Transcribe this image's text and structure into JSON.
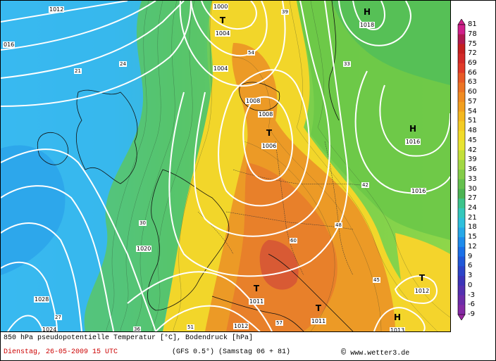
{
  "map": {
    "title_line": "850 hPa pseudopotentielle Temperatur [°C],  Bodendruck [hPa]",
    "date_line": "Dienstag, 26-05-2009  15 UTC",
    "model_line": "(GFS 0.5°)  (Samstag 06 + 81)",
    "copyright_symbol": "©",
    "copyright_site": "www.wetter3.de",
    "colors": {
      "c_cyan_light": "#3ad8f0",
      "c_blue": "#1e90ff",
      "c_green": "#30c060",
      "c_yellow": "#f2d02a",
      "c_orange": "#e8781e",
      "c_red": "#cc2020",
      "isobar": "#ffffff"
    }
  },
  "pressure_centers": [
    {
      "symbol": "T",
      "value": "1004"
    },
    {
      "symbol": "H",
      "value": "1018"
    },
    {
      "symbol": "T",
      "value": "1006"
    },
    {
      "symbol": "H",
      "value": "1016"
    },
    {
      "symbol": "T",
      "value": "1011"
    },
    {
      "symbol": "T",
      "value": "1011"
    },
    {
      "symbol": "T",
      "value": "1012"
    },
    {
      "symbol": "H",
      "value": "1013"
    }
  ],
  "isobar_labels": [
    "1012",
    "1000",
    "1004",
    "016",
    "1008",
    "1008",
    "1016",
    "1020",
    "1028",
    "1024",
    "1012"
  ],
  "temp_labels": [
    "21",
    "24",
    "27",
    "30",
    "33",
    "36",
    "39",
    "42",
    "45",
    "48",
    "51",
    "54",
    "57",
    "60"
  ],
  "colorbar": {
    "labels": [
      "81",
      "78",
      "75",
      "72",
      "69",
      "66",
      "63",
      "60",
      "57",
      "54",
      "51",
      "48",
      "45",
      "42",
      "39",
      "36",
      "33",
      "30",
      "27",
      "24",
      "21",
      "18",
      "15",
      "12",
      "9",
      "6",
      "3",
      "0",
      "-3",
      "-6",
      "-9"
    ],
    "colors": [
      "#d0208a",
      "#b01a50",
      "#c42020",
      "#d22a28",
      "#e03a28",
      "#e85a26",
      "#ec7424",
      "#f08c22",
      "#f2a020",
      "#f4b820",
      "#f4cc24",
      "#f2dc2a",
      "#e8e432",
      "#c4e03a",
      "#a2d844",
      "#84cc48",
      "#64c04e",
      "#4cb454",
      "#3cc48c",
      "#34c8bc",
      "#2ec0dc",
      "#26a8e8",
      "#1e8cec",
      "#1a70e8",
      "#2058d8",
      "#2c44c8",
      "#3c34b8",
      "#5430b0",
      "#6c2ca8",
      "#842aa4",
      "#9a28a0"
    ]
  }
}
